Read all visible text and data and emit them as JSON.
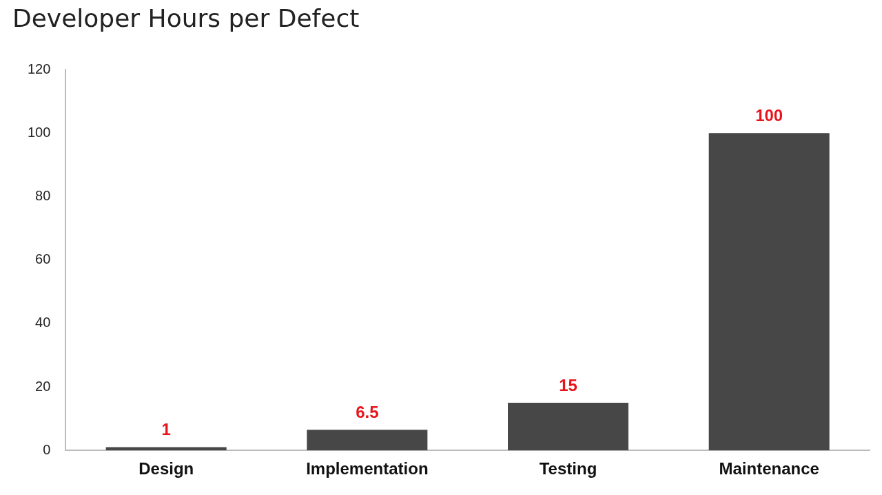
{
  "chart_data": {
    "type": "bar",
    "title": "Developer Hours per Defect",
    "categories": [
      "Design",
      "Implementation",
      "Testing",
      "Maintenance"
    ],
    "values": [
      1,
      6.5,
      15,
      100
    ],
    "color": "#474747",
    "ylim": [
      0,
      120
    ],
    "yticks": [
      0,
      20,
      40,
      60,
      80,
      100,
      120
    ],
    "grid": false,
    "legend": false,
    "data_labels": true
  }
}
